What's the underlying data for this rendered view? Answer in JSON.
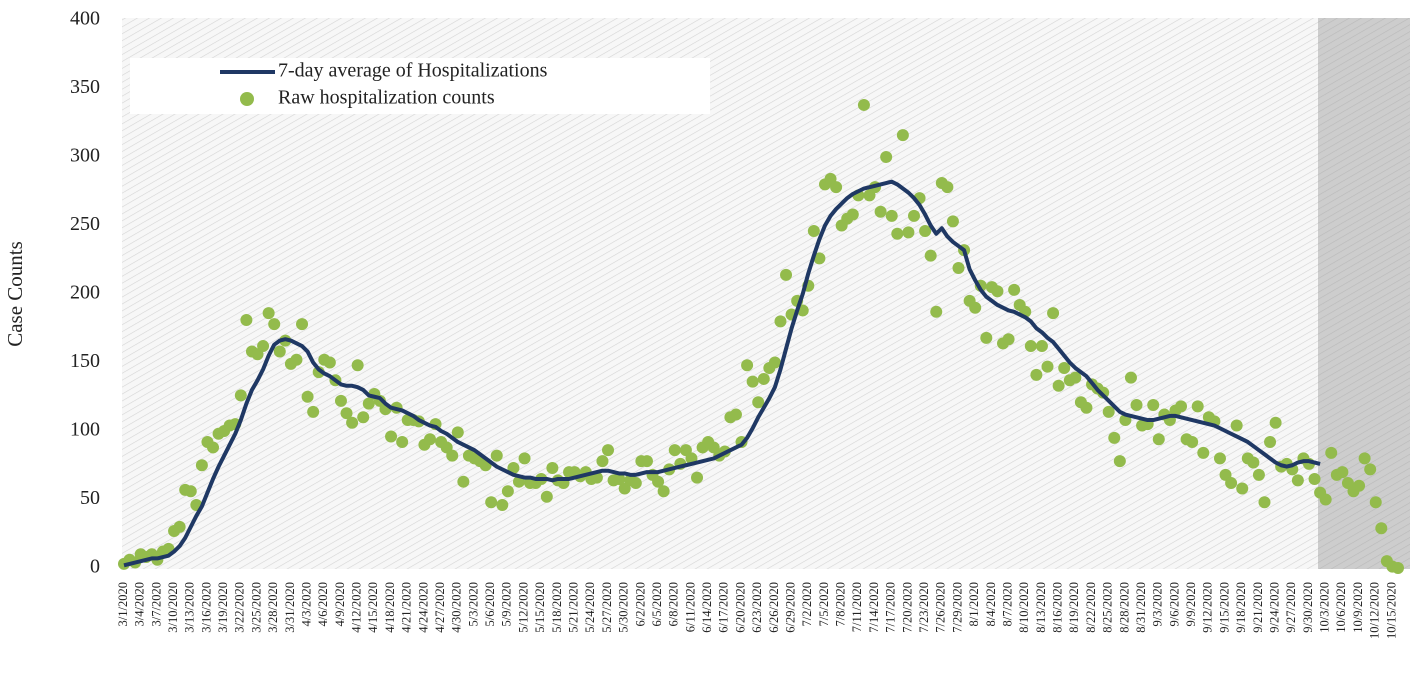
{
  "chart_data": {
    "type": "line",
    "y_label": "Case Counts",
    "ylim": [
      0,
      400
    ],
    "yticks": [
      0,
      50,
      100,
      150,
      200,
      250,
      300,
      350,
      400
    ],
    "grid": false,
    "legend": "top-left",
    "categories": [
      "3/1/2020",
      null,
      null,
      "3/4/2020",
      null,
      null,
      "3/7/2020",
      null,
      null,
      "3/10/2020",
      null,
      null,
      "3/13/2020",
      null,
      null,
      "3/16/2020",
      null,
      null,
      "3/19/2020",
      null,
      null,
      "3/22/2020",
      null,
      null,
      "3/25/2020",
      null,
      null,
      "3/28/2020",
      null,
      null,
      "3/31/2020",
      null,
      null,
      "4/3/2020",
      null,
      null,
      "4/6/2020",
      null,
      null,
      "4/9/2020",
      null,
      null,
      "4/12/2020",
      null,
      null,
      "4/15/2020",
      null,
      null,
      "4/18/2020",
      null,
      null,
      "4/21/2020",
      null,
      null,
      "4/24/2020",
      null,
      null,
      "4/27/2020",
      null,
      null,
      "4/30/2020",
      null,
      null,
      "5/3/2020",
      null,
      null,
      "5/6/2020",
      null,
      null,
      "5/9/2020",
      null,
      null,
      "5/12/2020",
      null,
      null,
      "5/15/2020",
      null,
      null,
      "5/18/2020",
      null,
      null,
      "5/21/2020",
      null,
      null,
      "5/24/2020",
      null,
      null,
      "5/27/2020",
      null,
      null,
      "5/30/2020",
      null,
      null,
      "6/2/2020",
      null,
      null,
      "6/5/2020",
      null,
      null,
      "6/8/2020",
      null,
      null,
      "6/11/2020",
      null,
      null,
      "6/14/2020",
      null,
      null,
      "6/17/2020",
      null,
      null,
      "6/20/2020",
      null,
      null,
      "6/23/2020",
      null,
      null,
      "6/26/2020",
      null,
      null,
      "6/29/2020",
      null,
      null,
      "7/2/2020",
      null,
      null,
      "7/5/2020",
      null,
      null,
      "7/8/2020",
      null,
      null,
      "7/11/2020",
      null,
      null,
      "7/14/2020",
      null,
      null,
      "7/17/2020",
      null,
      null,
      "7/20/2020",
      null,
      null,
      "7/23/2020",
      null,
      null,
      "7/26/2020",
      null,
      null,
      "7/29/2020",
      null,
      null,
      "8/1/2020",
      null,
      null,
      "8/4/2020",
      null,
      null,
      "8/7/2020",
      null,
      null,
      "8/10/2020",
      null,
      null,
      "8/13/2020",
      null,
      null,
      "8/16/2020",
      null,
      null,
      "8/19/2020",
      null,
      null,
      "8/22/2020",
      null,
      null,
      "8/25/2020",
      null,
      null,
      "8/28/2020",
      null,
      null,
      "8/31/2020",
      null,
      null,
      "9/3/2020",
      null,
      null,
      "9/6/2020",
      null,
      null,
      "9/9/2020",
      null,
      null,
      "9/12/2020",
      null,
      null,
      "9/15/2020",
      null,
      null,
      "9/18/2020",
      null,
      null,
      "9/21/2020",
      null,
      null,
      "9/24/2020",
      null,
      null,
      "9/27/2020",
      null,
      null,
      "9/30/2020",
      null,
      null,
      "10/3/2020",
      null,
      null,
      "10/6/2020",
      null,
      null,
      "10/9/2020",
      null,
      null,
      "10/12/2020",
      null,
      null,
      "10/15/2020",
      null
    ],
    "series": [
      {
        "name": "7-day average of Hospitalizations",
        "type": "line",
        "color": "#1f3864",
        "values": [
          2,
          3,
          4,
          5,
          6,
          7,
          7,
          8,
          9,
          12,
          16,
          22,
          30,
          38,
          45,
          55,
          65,
          74,
          82,
          90,
          98,
          108,
          120,
          130,
          137,
          145,
          155,
          163,
          166,
          167,
          166,
          164,
          162,
          158,
          150,
          145,
          142,
          140,
          137,
          134,
          133,
          133,
          132,
          130,
          126,
          125,
          124,
          120,
          117,
          116,
          115,
          113,
          111,
          108,
          106,
          104,
          103,
          100,
          98,
          95,
          92,
          90,
          88,
          86,
          83,
          80,
          77,
          74,
          72,
          70,
          68,
          67,
          66,
          66,
          65,
          65,
          65,
          64,
          65,
          65,
          65,
          66,
          67,
          68,
          69,
          70,
          71,
          71,
          70,
          69,
          69,
          68,
          68,
          69,
          70,
          70,
          70,
          71,
          72,
          73,
          74,
          75,
          76,
          77,
          78,
          79,
          80,
          82,
          84,
          86,
          88,
          90,
          95,
          102,
          110,
          117,
          124,
          132,
          145,
          160,
          175,
          188,
          200,
          215,
          228,
          240,
          250,
          257,
          262,
          266,
          270,
          273,
          275,
          277,
          278,
          279,
          280,
          281,
          282,
          280,
          277,
          274,
          270,
          265,
          258,
          250,
          244,
          248,
          242,
          238,
          235,
          232,
          218,
          210,
          203,
          198,
          195,
          192,
          190,
          188,
          187,
          185,
          183,
          180,
          175,
          172,
          168,
          165,
          160,
          155,
          150,
          146,
          143,
          140,
          135,
          130,
          126,
          122,
          118,
          114,
          112,
          111,
          110,
          109,
          108,
          108,
          109,
          110,
          111,
          111,
          110,
          109,
          108,
          107,
          106,
          105,
          104,
          102,
          100,
          98,
          96,
          94,
          92,
          89,
          86,
          83,
          80,
          77,
          75,
          74,
          75,
          77,
          78,
          78,
          77,
          76,
          null,
          null,
          null,
          null,
          null,
          null,
          null,
          null,
          null,
          null,
          null,
          null,
          null,
          null
        ]
      },
      {
        "name": "Raw hospitalization counts",
        "type": "scatter",
        "color": "#93bb4c",
        "values": [
          3,
          6,
          4,
          10,
          8,
          10,
          6,
          12,
          14,
          27,
          30,
          57,
          56,
          46,
          75,
          92,
          88,
          98,
          100,
          104,
          105,
          126,
          181,
          158,
          156,
          162,
          186,
          178,
          158,
          166,
          149,
          152,
          178,
          125,
          114,
          143,
          152,
          150,
          137,
          122,
          113,
          106,
          148,
          110,
          120,
          127,
          122,
          116,
          96,
          117,
          92,
          108,
          108,
          107,
          90,
          94,
          105,
          92,
          88,
          82,
          99,
          63,
          82,
          80,
          78,
          75,
          48,
          82,
          46,
          56,
          73,
          63,
          80,
          62,
          62,
          65,
          52,
          73,
          64,
          62,
          70,
          70,
          67,
          70,
          65,
          66,
          78,
          86,
          64,
          65,
          58,
          64,
          62,
          78,
          78,
          68,
          63,
          56,
          72,
          86,
          76,
          86,
          80,
          66,
          88,
          92,
          88,
          82,
          85,
          110,
          112,
          92,
          148,
          136,
          121,
          138,
          146,
          150,
          180,
          214,
          185,
          195,
          188,
          206,
          246,
          226,
          280,
          284,
          278,
          250,
          255,
          258,
          272,
          338,
          272,
          278,
          260,
          300,
          257,
          244,
          316,
          245,
          257,
          270,
          246,
          228,
          187,
          281,
          278,
          253,
          219,
          232,
          195,
          190,
          206,
          168,
          205,
          202,
          164,
          167,
          203,
          192,
          187,
          162,
          141,
          162,
          147,
          186,
          133,
          146,
          137,
          139,
          121,
          117,
          134,
          131,
          128,
          114,
          95,
          78,
          108,
          139,
          119,
          104,
          105,
          119,
          94,
          112,
          108,
          115,
          118,
          94,
          92,
          118,
          84,
          110,
          107,
          80,
          68,
          62,
          104,
          58,
          80,
          77,
          68,
          48,
          92,
          106,
          74,
          76,
          72,
          64,
          80,
          76,
          65,
          55,
          50,
          84,
          68,
          70,
          62,
          56,
          60,
          80,
          72,
          48,
          29,
          5,
          1,
          0
        ]
      }
    ]
  }
}
